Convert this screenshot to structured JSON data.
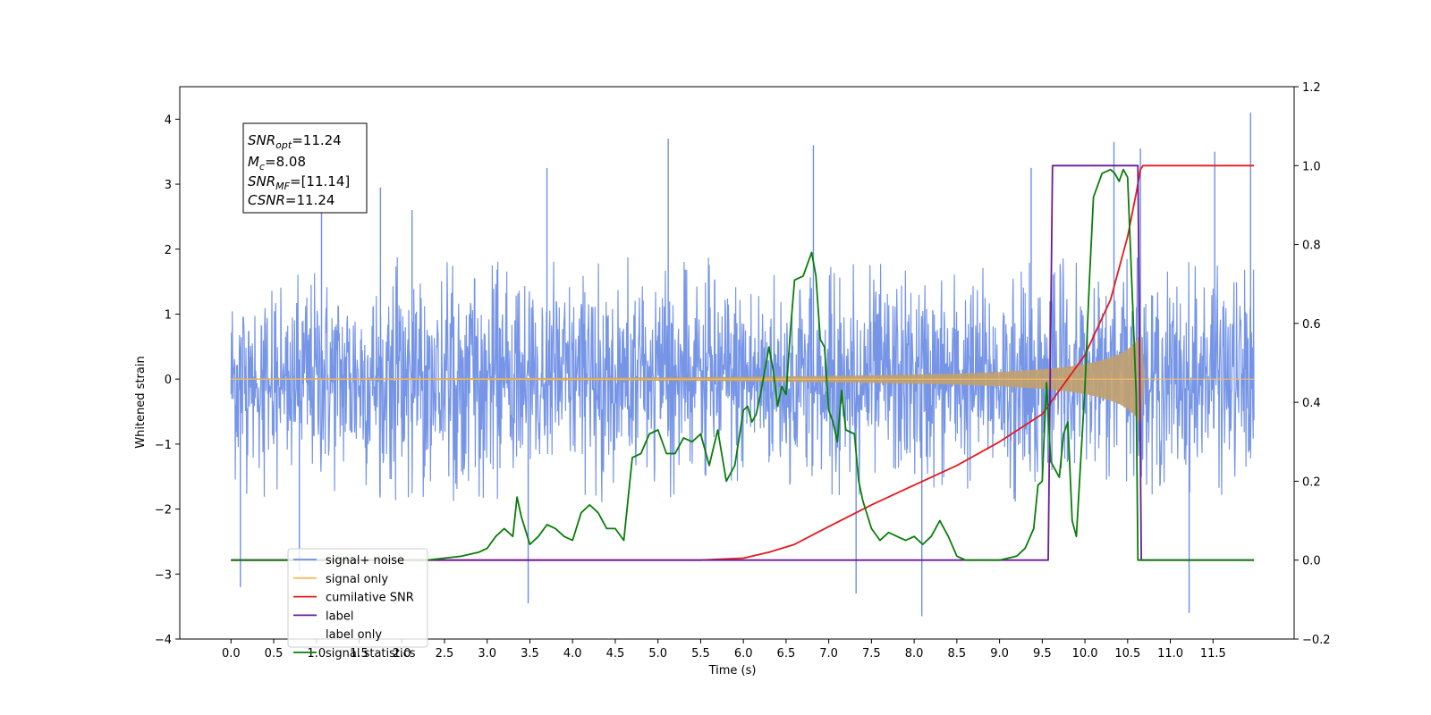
{
  "chart_data": {
    "type": "line",
    "xlabel": "Time (s)",
    "ylabel": "Whitened strain",
    "xlim": [
      -0.6,
      12.45
    ],
    "ylim": [
      -4,
      4.5
    ],
    "y2lim": [
      -0.2,
      1.2
    ],
    "x_ticks": [
      "0.0",
      "0.5",
      "1.0",
      "1.5",
      "2.0",
      "2.5",
      "3.0",
      "3.5",
      "4.0",
      "4.5",
      "5.0",
      "5.5",
      "6.0",
      "6.5",
      "7.0",
      "7.5",
      "8.0",
      "8.5",
      "9.0",
      "9.5",
      "10.0",
      "10.5",
      "11.0",
      "11.5"
    ],
    "y_ticks": [
      "−4",
      "−3",
      "−2",
      "−1",
      "0",
      "1",
      "2",
      "3",
      "4"
    ],
    "y2_ticks": [
      "−0.2",
      "0.0",
      "0.2",
      "0.4",
      "0.6",
      "0.8",
      "1.0",
      "1.2"
    ],
    "annotation": {
      "snr_opt": {
        "main": "SNR",
        "sub": "opt",
        "value": "=11.24"
      },
      "mc": {
        "main": "M",
        "sub": "c",
        "value": "=8.08"
      },
      "snr_mf": {
        "main": "SNR",
        "sub": "MF",
        "value": "=[11.14]"
      },
      "csnr": {
        "main": "CSNR",
        "value": "=11.24"
      }
    },
    "legend": {
      "placement": "lower-left",
      "entries": [
        "signal+ noise",
        "signal only",
        "cumilative SNR",
        "label",
        "label only",
        "signal statistics"
      ]
    },
    "series": [
      {
        "name": "signal+ noise",
        "axis": "left",
        "color": "#6f8fe6",
        "description": "whitened noise band",
        "x_range": [
          0.0,
          11.98
        ],
        "envelope_upper": 1.9,
        "envelope_lower": -1.9,
        "spikes": [
          [
            0.11,
            -3.2
          ],
          [
            0.8,
            -2.95
          ],
          [
            1.06,
            2.85
          ],
          [
            1.75,
            2.95
          ],
          [
            2.12,
            2.6
          ],
          [
            3.48,
            -3.45
          ],
          [
            3.7,
            3.25
          ],
          [
            5.12,
            3.7
          ],
          [
            6.82,
            3.6
          ],
          [
            7.32,
            -3.3
          ],
          [
            8.09,
            -3.65
          ],
          [
            9.37,
            3.25
          ],
          [
            10.34,
            3.65
          ],
          [
            10.65,
            3.55
          ],
          [
            11.22,
            -3.6
          ],
          [
            11.52,
            3.5
          ],
          [
            11.94,
            4.1
          ]
        ]
      },
      {
        "name": "signal only",
        "axis": "left",
        "color": "#f5bf5c",
        "description": "chirp growing toward merger then ringdown",
        "x": [
          0,
          3.0,
          5.0,
          6.0,
          7.0,
          7.5,
          8.0,
          8.5,
          9.0,
          9.5,
          9.8,
          10.0,
          10.2,
          10.4,
          10.5,
          10.6,
          10.66,
          10.7,
          11.98
        ],
        "amplitude": [
          0.01,
          0.015,
          0.025,
          0.035,
          0.05,
          0.06,
          0.07,
          0.085,
          0.11,
          0.15,
          0.19,
          0.23,
          0.29,
          0.38,
          0.46,
          0.58,
          0.72,
          0.0,
          0.0
        ]
      },
      {
        "name": "cumilative SNR",
        "axis": "right",
        "color": "#e31a1c",
        "x": [
          0,
          5.5,
          6.0,
          6.3,
          6.6,
          7.0,
          7.5,
          8.0,
          8.5,
          9.0,
          9.5,
          10.0,
          10.3,
          10.5,
          10.6,
          10.65,
          10.68,
          11.98
        ],
        "y": [
          0,
          0.0,
          0.005,
          0.02,
          0.04,
          0.085,
          0.14,
          0.19,
          0.24,
          0.3,
          0.37,
          0.52,
          0.66,
          0.82,
          0.93,
          0.99,
          1.0,
          1.0
        ]
      },
      {
        "name": "label",
        "axis": "right",
        "color": "#6a1b9a",
        "x": [
          0,
          9.57,
          9.62,
          10.62,
          10.66,
          11.98
        ],
        "y": [
          0,
          0,
          1.0,
          1.0,
          0,
          0
        ]
      },
      {
        "name": "signal statistics",
        "axis": "right",
        "color": "#0a7d0a",
        "x": [
          0,
          2.3,
          2.5,
          2.7,
          2.9,
          3.0,
          3.1,
          3.2,
          3.3,
          3.35,
          3.4,
          3.5,
          3.6,
          3.7,
          3.8,
          3.9,
          4.0,
          4.1,
          4.2,
          4.3,
          4.4,
          4.5,
          4.6,
          4.7,
          4.8,
          4.9,
          5.0,
          5.1,
          5.2,
          5.3,
          5.4,
          5.5,
          5.6,
          5.7,
          5.8,
          5.9,
          6.0,
          6.05,
          6.1,
          6.15,
          6.2,
          6.3,
          6.35,
          6.4,
          6.45,
          6.5,
          6.55,
          6.6,
          6.7,
          6.8,
          6.85,
          6.9,
          6.95,
          7.0,
          7.05,
          7.1,
          7.15,
          7.2,
          7.3,
          7.35,
          7.4,
          7.5,
          7.6,
          7.7,
          7.8,
          7.9,
          8.0,
          8.1,
          8.2,
          8.3,
          8.4,
          8.5,
          8.6,
          8.7,
          8.8,
          9.0,
          9.2,
          9.3,
          9.4,
          9.45,
          9.5,
          9.55,
          9.6,
          9.7,
          9.75,
          9.8,
          9.85,
          9.9,
          10.0,
          10.05,
          10.1,
          10.2,
          10.3,
          10.35,
          10.4,
          10.45,
          10.5,
          10.6,
          10.62,
          10.66,
          10.7,
          11.98
        ],
        "y": [
          0,
          0.0,
          0.005,
          0.01,
          0.02,
          0.03,
          0.06,
          0.08,
          0.06,
          0.16,
          0.11,
          0.04,
          0.06,
          0.09,
          0.08,
          0.06,
          0.05,
          0.12,
          0.14,
          0.12,
          0.08,
          0.08,
          0.05,
          0.26,
          0.27,
          0.32,
          0.33,
          0.27,
          0.27,
          0.31,
          0.3,
          0.32,
          0.24,
          0.33,
          0.2,
          0.24,
          0.38,
          0.39,
          0.35,
          0.37,
          0.42,
          0.54,
          0.48,
          0.39,
          0.44,
          0.42,
          0.58,
          0.71,
          0.72,
          0.78,
          0.72,
          0.56,
          0.54,
          0.38,
          0.35,
          0.3,
          0.43,
          0.33,
          0.32,
          0.2,
          0.15,
          0.08,
          0.05,
          0.07,
          0.06,
          0.05,
          0.06,
          0.04,
          0.06,
          0.1,
          0.06,
          0.01,
          0.0,
          0.0,
          0.0,
          0.0,
          0.01,
          0.03,
          0.08,
          0.19,
          0.2,
          0.45,
          0.25,
          0.21,
          0.32,
          0.35,
          0.1,
          0.06,
          0.44,
          0.7,
          0.92,
          0.98,
          0.99,
          0.98,
          0.96,
          0.99,
          0.97,
          0.42,
          0.0,
          0.0,
          0.0,
          0.0
        ]
      }
    ]
  }
}
